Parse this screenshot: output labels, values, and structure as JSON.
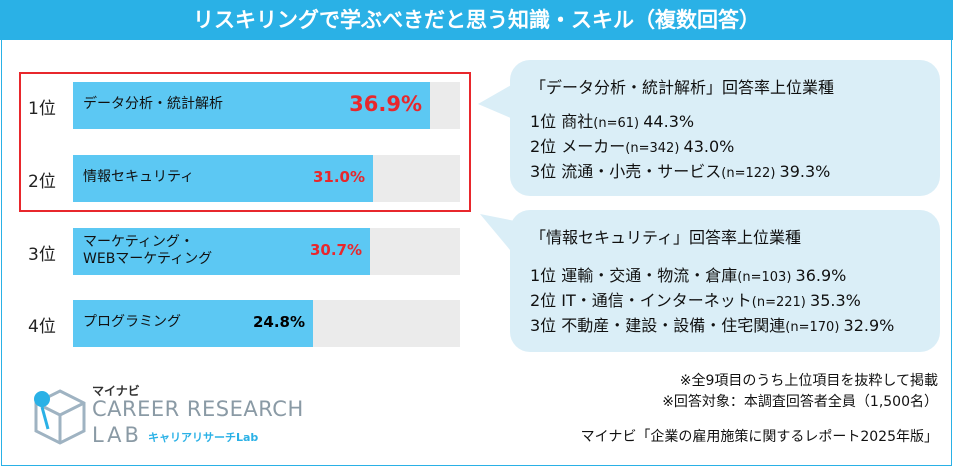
{
  "title": "リスキリングで学ぶべきだと思う知識・スキル（複数回答）",
  "chart_data": {
    "type": "bar",
    "orientation": "horizontal",
    "categories": [
      "データ分析・統計解析",
      "情報セキュリティ",
      "マーケティング・WEBマーケティング",
      "プログラミング"
    ],
    "ranks": [
      "1位",
      "2位",
      "3位",
      "4位"
    ],
    "values": [
      36.9,
      31.0,
      30.7,
      24.8
    ],
    "value_labels": [
      "36.9%",
      "31.0%",
      "30.7%",
      "24.8%"
    ],
    "label_lines": [
      [
        "データ分析・統計解析"
      ],
      [
        "情報セキュリティ"
      ],
      [
        "マーケティング・",
        "WEBマーケティング"
      ],
      [
        "プログラミング"
      ]
    ],
    "xlim": [
      0,
      40
    ],
    "unit": "%"
  },
  "colors": {
    "accent": "#2ab1e6",
    "bar": "#5cc8f3",
    "track": "#ebebeb",
    "highlight": "#e8272c",
    "bubble": "#daeef7"
  },
  "bubble1": {
    "title": "「データ分析・統計解析」回答率上位業種",
    "items": [
      {
        "rank": "1位",
        "industry": "商社",
        "n": "(n=61)",
        "pct": "44.3%",
        "highlight": false
      },
      {
        "rank": "2位",
        "industry": "メーカー",
        "n": "(n=342)",
        "pct": "43.0%",
        "highlight": false
      },
      {
        "rank": "3位",
        "industry": "流通・小売・サービス",
        "n": "(n=122)",
        "pct": "39.3%",
        "highlight": true
      }
    ]
  },
  "bubble2": {
    "title": "「情報セキュリティ」回答率上位業種",
    "items": [
      {
        "rank": "1位",
        "industry": "運輸・交通・物流・倉庫",
        "n": "(n=103)",
        "pct": "36.9%",
        "highlight": true
      },
      {
        "rank": "2位",
        "industry": "IT・通信・インターネット",
        "n": "(n=221)",
        "pct": "35.3%",
        "highlight": false
      },
      {
        "rank": "3位",
        "industry": "不動産・建設・設備・住宅関連",
        "n": "(n=170)",
        "pct": "32.9%",
        "highlight": false
      }
    ]
  },
  "notes": {
    "line1": "※全9項目のうち上位項目を抜粋して掲載",
    "line2": "※回答対象：本調査回答者全員（1,500名）",
    "source": "マイナビ「企業の雇用施策に関するレポート2025年版」"
  },
  "logo": {
    "brand": "マイナビ",
    "line1": "CAREER RESEARCH",
    "line2": "LAB",
    "sub": "キャリアリサーチLab"
  }
}
